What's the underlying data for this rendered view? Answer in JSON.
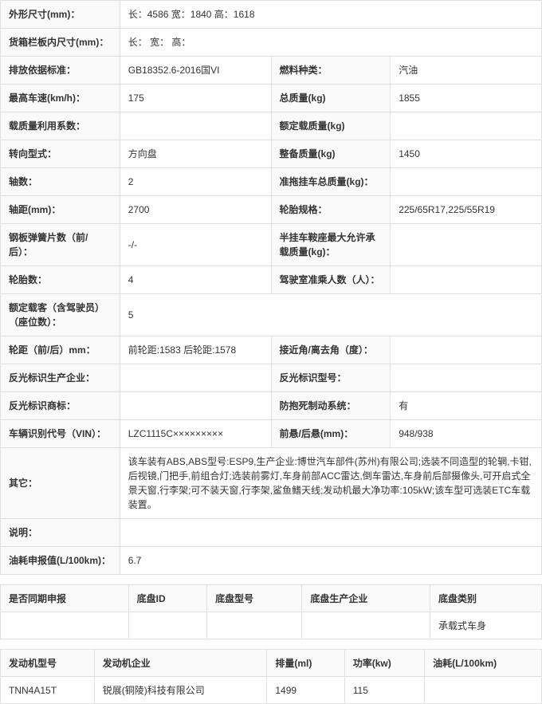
{
  "specs": {
    "dim_label": "外形尺寸(mm)：",
    "dim_val": "长：4586 宽：1840 高：1618",
    "cargo_label": "货箱栏板内尺寸(mm)：",
    "cargo_val": "长： 宽： 高：",
    "emission_label": "排放依据标准：",
    "emission_val": "GB18352.6-2016国VI",
    "fuel_label": "燃料种类：",
    "fuel_val": "汽油",
    "maxspeed_label": "最高车速(km/h)：",
    "maxspeed_val": "175",
    "totalmass_label": "总质量(kg)",
    "totalmass_val": "1855",
    "loadratio_label": "载质量利用系数：",
    "loadratio_val": "",
    "ratedload_label": "额定载质量(kg)",
    "ratedload_val": "",
    "steering_label": "转向型式：",
    "steering_val": "方向盘",
    "curbmass_label": "整备质量(kg)",
    "curbmass_val": "1450",
    "axles_label": "轴数：",
    "axles_val": "2",
    "trailermass_label": "准拖挂车总质量(kg)：",
    "trailermass_val": "",
    "wheelbase_label": "轴距(mm)：",
    "wheelbase_val": "2700",
    "tirespec_label": "轮胎规格：",
    "tirespec_val": "225/65R17,225/55R19",
    "leafspring_label": "钢板弹簧片数（前/后）：",
    "leafspring_val": "-/-",
    "saddle_label": "半挂车鞍座最大允许承载质量(kg)：",
    "saddle_val": "",
    "tirecount_label": "轮胎数：",
    "tirecount_val": "4",
    "cabseats_label": "驾驶室准乘人数（人）：",
    "cabseats_val": "",
    "ratedpax_label": "额定载客（含驾驶员）（座位数）：",
    "ratedpax_val": "5",
    "track_label": "轮距（前/后）mm：",
    "track_val": "前轮距:1583 后轮距:1578",
    "approach_label": "接近角/离去角（度）：",
    "approach_val": "",
    "reflectmfr_label": "反光标识生产企业：",
    "reflectmfr_val": "",
    "reflectmodel_label": "反光标识型号：",
    "reflectmodel_val": "",
    "reflecttm_label": "反光标识商标：",
    "reflecttm_val": "",
    "abs_label": "防抱死制动系统：",
    "abs_val": "有",
    "vin_label": "车辆识别代号（VIN）：",
    "vin_val": "LZC1115C×××××××××",
    "overhang_label": "前悬/后悬(mm)：",
    "overhang_val": "948/938",
    "other_label": "其它：",
    "other_val": "该车装有ABS,ABS型号:ESP9,生产企业:博世汽车部件(苏州)有限公司;选装不同造型的轮辋,卡钳,后视镜,门把手,前组合灯;选装前雾灯,车身前部ACC雷达,倒车雷达,车身前后部摄像头,可开启式全景天窗,行李架;可不装天窗,行李架,鲨鱼鳍天线;发动机最大净功率:105kW;该车型可选装ETC车载装置。",
    "remark_label": "说明：",
    "remark_val": "",
    "fuelcons_label": "油耗申报值(L/100km)：",
    "fuelcons_val": "6.7"
  },
  "chassis": {
    "h1": "是否同期申报",
    "h2": "底盘ID",
    "h3": "底盘型号",
    "h4": "底盘生产企业",
    "h5": "底盘类别",
    "v5": "承载式车身"
  },
  "engine": {
    "h1": "发动机型号",
    "h2": "发动机企业",
    "h3": "排量(ml)",
    "h4": "功率(kw)",
    "h5": "油耗(L/100km)",
    "v1": "TNN4A15T",
    "v2": "锐展(铜陵)科技有限公司",
    "v3": "1499",
    "v4": "115",
    "v5": ""
  }
}
